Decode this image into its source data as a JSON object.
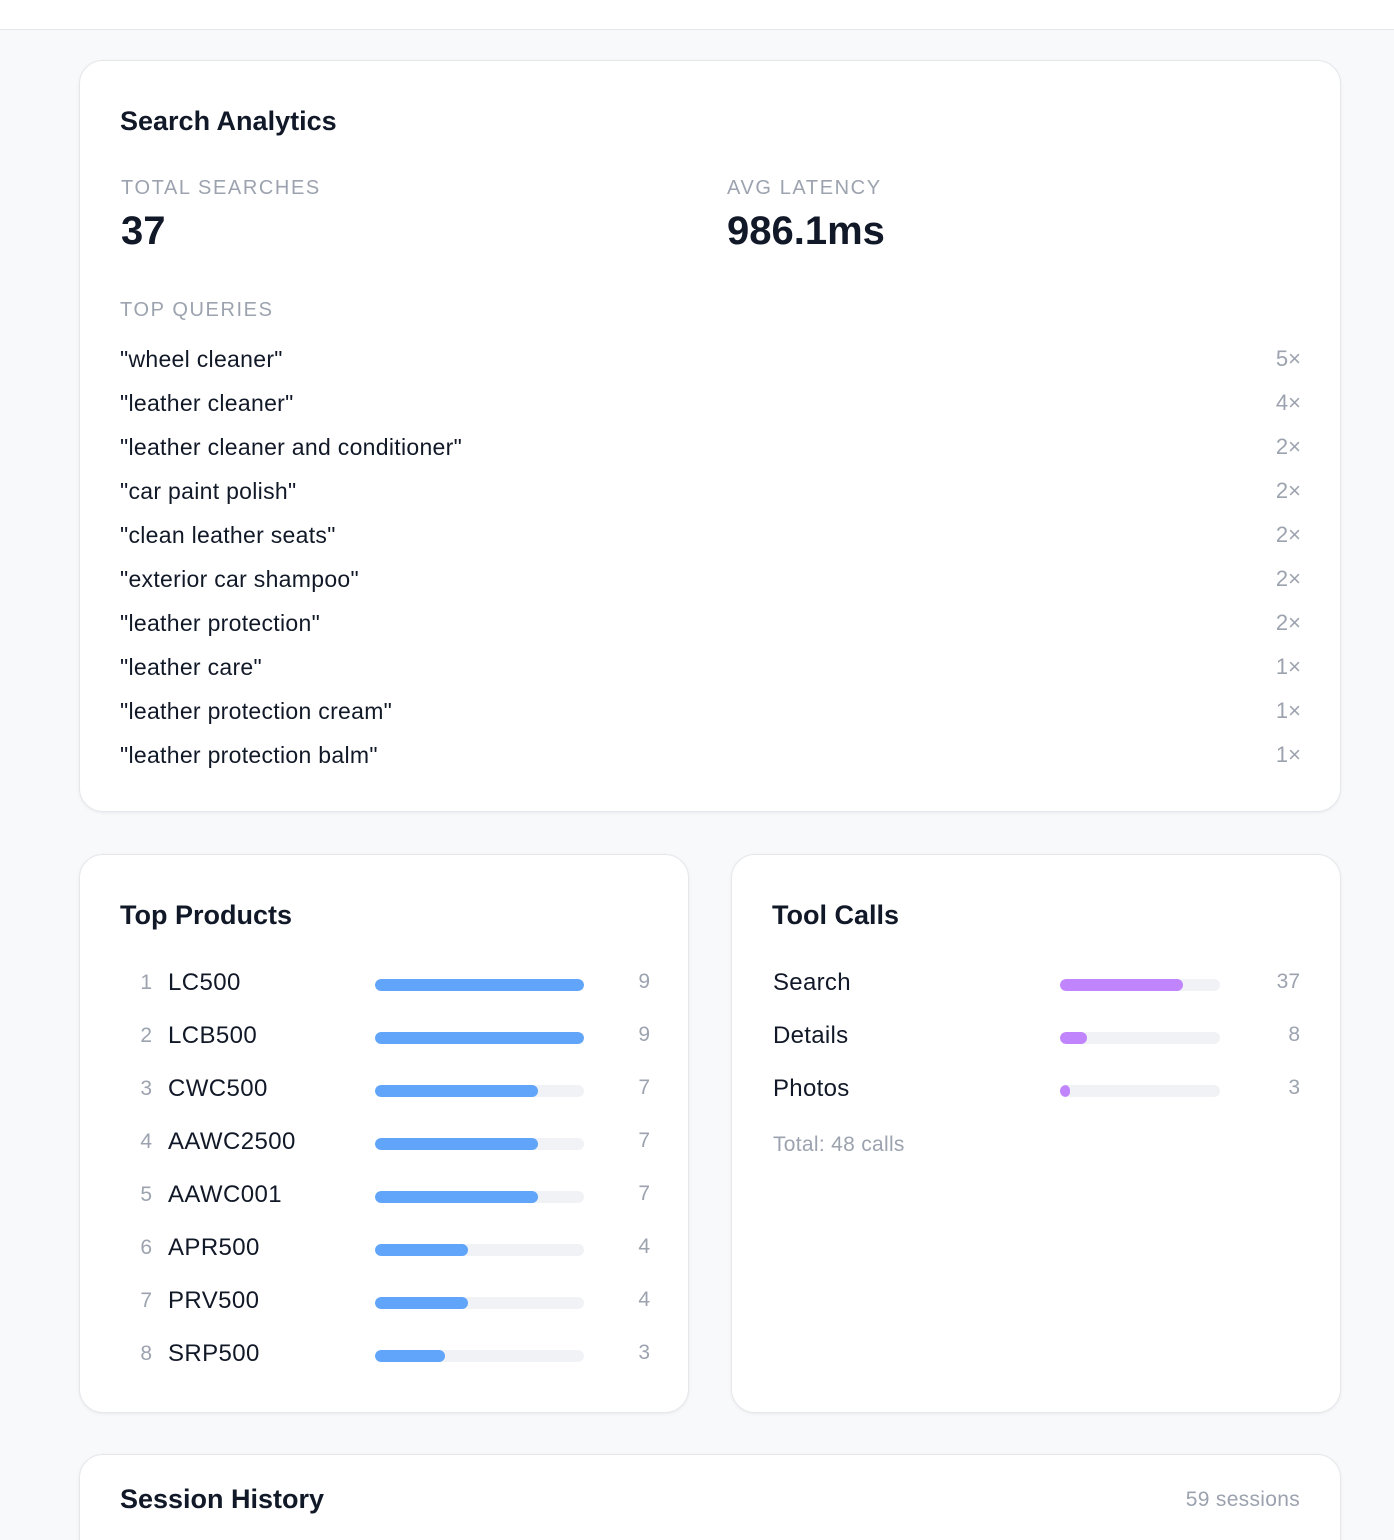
{
  "search_analytics": {
    "title": "Search Analytics",
    "total_searches_label": "TOTAL SEARCHES",
    "total_searches_value": "37",
    "avg_latency_label": "AVG LATENCY",
    "avg_latency_value": "986.1ms",
    "top_queries_label": "TOP QUERIES",
    "queries": [
      {
        "text": "\"wheel cleaner\"",
        "count": "5×"
      },
      {
        "text": "\"leather cleaner\"",
        "count": "4×"
      },
      {
        "text": "\"leather cleaner and conditioner\"",
        "count": "2×"
      },
      {
        "text": "\"car paint polish\"",
        "count": "2×"
      },
      {
        "text": "\"clean leather seats\"",
        "count": "2×"
      },
      {
        "text": "\"exterior car shampoo\"",
        "count": "2×"
      },
      {
        "text": "\"leather protection\"",
        "count": "2×"
      },
      {
        "text": "\"leather care\"",
        "count": "1×"
      },
      {
        "text": "\"leather protection cream\"",
        "count": "1×"
      },
      {
        "text": "\"leather protection balm\"",
        "count": "1×"
      }
    ]
  },
  "top_products": {
    "title": "Top Products",
    "bar_color": "#60a5fa",
    "max": 9,
    "items": [
      {
        "rank": "1",
        "name": "LC500",
        "count": 9
      },
      {
        "rank": "2",
        "name": "LCB500",
        "count": 9
      },
      {
        "rank": "3",
        "name": "CWC500",
        "count": 7
      },
      {
        "rank": "4",
        "name": "AAWC2500",
        "count": 7
      },
      {
        "rank": "5",
        "name": "AAWC001",
        "count": 7
      },
      {
        "rank": "6",
        "name": "APR500",
        "count": 4
      },
      {
        "rank": "7",
        "name": "PRV500",
        "count": 4
      },
      {
        "rank": "8",
        "name": "SRP500",
        "count": 3
      }
    ]
  },
  "tool_calls": {
    "title": "Tool Calls",
    "bar_color": "#c084fc",
    "total_value": 48,
    "items": [
      {
        "name": "Search",
        "count": 37
      },
      {
        "name": "Details",
        "count": 8
      },
      {
        "name": "Photos",
        "count": 3
      }
    ],
    "total_text": "Total: 48 calls"
  },
  "session_history": {
    "title": "Session History",
    "count_text": "59 sessions"
  }
}
